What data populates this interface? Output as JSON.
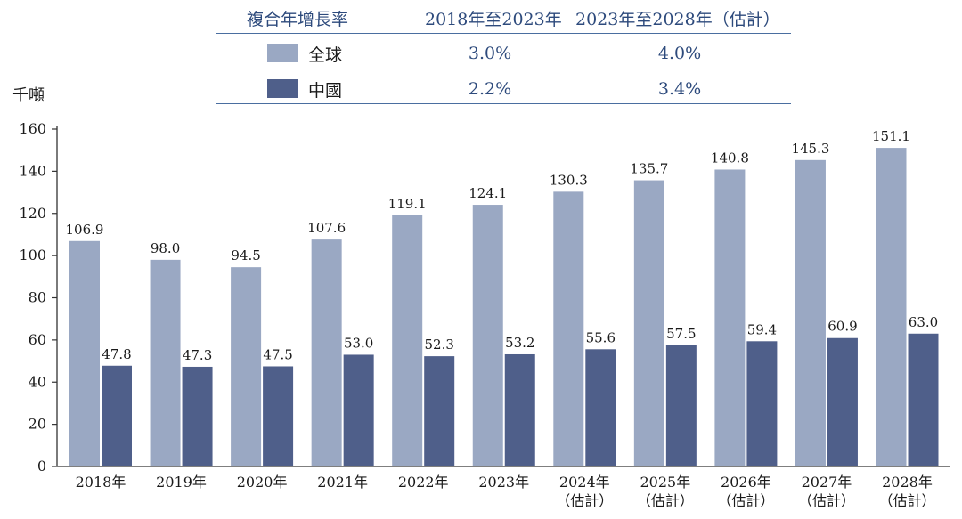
{
  "legend_table": {
    "header_label": "複合年增長率",
    "col1_header": "2018年至2023年",
    "col2_header": "2023年至2028年（估計）",
    "rows": [
      {
        "name": "全球",
        "color": "#9aa8c3",
        "cagr_2018_2023": "3.0%",
        "cagr_2023_2028": "4.0%"
      },
      {
        "name": "中國",
        "color": "#4f5f8a",
        "cagr_2018_2023": "2.2%",
        "cagr_2023_2028": "3.4%"
      }
    ]
  },
  "unit_label": "千噸",
  "chart_data": {
    "type": "bar",
    "categories": [
      "2018年",
      "2019年",
      "2020年",
      "2021年",
      "2022年",
      "2023年",
      "2024年\n（估計）",
      "2025年\n（估計）",
      "2026年\n（估計）",
      "2027年\n（估計）",
      "2028年\n（估計）"
    ],
    "series": [
      {
        "name": "全球",
        "color": "#9aa8c3",
        "values": [
          106.9,
          98.0,
          94.5,
          107.6,
          119.1,
          124.1,
          130.3,
          135.7,
          140.8,
          145.3,
          151.1
        ]
      },
      {
        "name": "中國",
        "color": "#4f5f8a",
        "values": [
          47.8,
          47.3,
          47.5,
          53.0,
          52.3,
          53.2,
          55.6,
          57.5,
          59.4,
          60.9,
          63.0
        ]
      }
    ],
    "ylim": [
      0,
      160
    ],
    "yticks": [
      0,
      20,
      40,
      60,
      80,
      100,
      120,
      140,
      160
    ],
    "ylabel": "千噸",
    "grid": false
  }
}
